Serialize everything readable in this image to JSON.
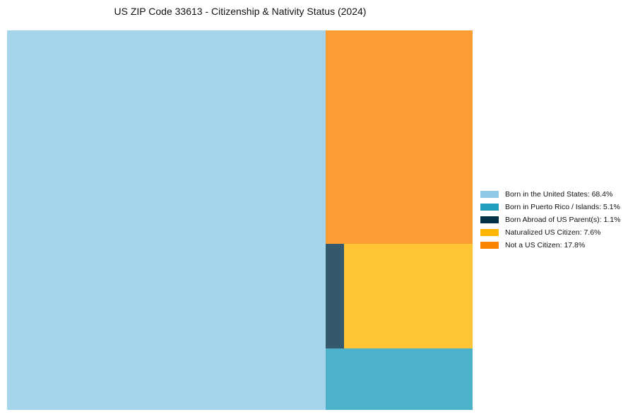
{
  "chart_data": {
    "type": "treemap",
    "title": "US ZIP Code 33613 - Citizenship & Nativity Status (2024)",
    "series": [
      {
        "name": "Born in the United States",
        "value": 68.4,
        "color": "#8ecae6",
        "legend": "Born in the United States: 68.4%"
      },
      {
        "name": "Born in Puerto Rico / Islands",
        "value": 5.1,
        "color": "#219ebc",
        "legend": "Born in Puerto Rico / Islands: 5.1%"
      },
      {
        "name": "Born Abroad of US Parent(s)",
        "value": 1.1,
        "color": "#023047",
        "legend": "Born Abroad of US Parent(s): 1.1%"
      },
      {
        "name": "Naturalized US Citizen",
        "value": 7.6,
        "color": "#ffb703",
        "legend": "Naturalized US Citizen: 7.6%"
      },
      {
        "name": "Not a US Citizen",
        "value": 17.8,
        "color": "#fb8500",
        "legend": "Not a US Citizen: 17.8%"
      }
    ],
    "legend_position": "right"
  }
}
